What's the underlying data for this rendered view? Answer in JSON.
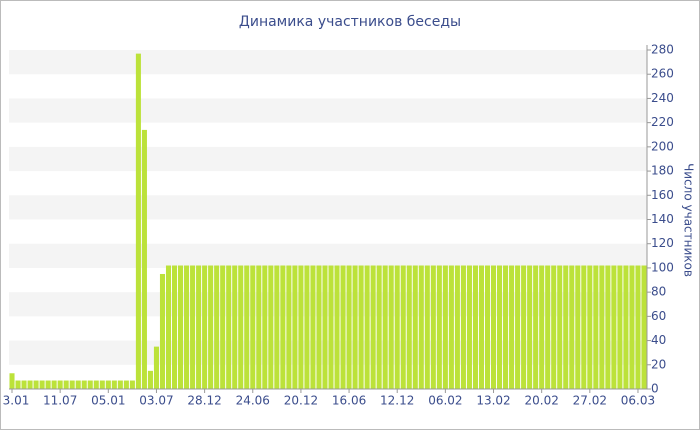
{
  "chart_data": {
    "type": "bar",
    "title": "Динамика участников беседы",
    "y_axis_label": "Число участников",
    "categories": [
      "3.01",
      null,
      null,
      null,
      null,
      null,
      null,
      null,
      "11.07",
      null,
      null,
      null,
      null,
      null,
      null,
      null,
      "05.01",
      null,
      null,
      null,
      null,
      null,
      null,
      null,
      "03.07",
      null,
      null,
      null,
      null,
      null,
      null,
      null,
      "28.12",
      null,
      null,
      null,
      null,
      null,
      null,
      null,
      "24.06",
      null,
      null,
      null,
      null,
      null,
      null,
      null,
      "20.12",
      null,
      null,
      null,
      null,
      null,
      null,
      null,
      "16.06",
      null,
      null,
      null,
      null,
      null,
      null,
      null,
      "12.12",
      null,
      null,
      null,
      null,
      null,
      null,
      null,
      "06.02",
      null,
      null,
      null,
      null,
      null,
      null,
      null,
      "13.02",
      null,
      null,
      null,
      null,
      null,
      null,
      null,
      "20.02",
      null,
      null,
      null,
      null,
      null,
      null,
      null,
      "27.02",
      null,
      null,
      null,
      null,
      null,
      null,
      null,
      "06.03",
      null
    ],
    "values": [
      13,
      7,
      7,
      7,
      7,
      7,
      7,
      7,
      7,
      7,
      7,
      7,
      7,
      7,
      7,
      7,
      7,
      7,
      7,
      7,
      7,
      277,
      214,
      15,
      35,
      95,
      102,
      102,
      102,
      102,
      102,
      102,
      102,
      102,
      102,
      102,
      102,
      102,
      102,
      102,
      102,
      102,
      102,
      102,
      102,
      102,
      102,
      102,
      102,
      102,
      102,
      102,
      102,
      102,
      102,
      102,
      102,
      102,
      102,
      102,
      102,
      102,
      102,
      102,
      102,
      102,
      102,
      102,
      102,
      102,
      102,
      102,
      102,
      102,
      102,
      102,
      102,
      102,
      102,
      102,
      102,
      102,
      102,
      102,
      102,
      102,
      102,
      102,
      102,
      102,
      102,
      102,
      102,
      102,
      102,
      102,
      102,
      102,
      102,
      102,
      102,
      102,
      102,
      102,
      102,
      102
    ],
    "color": "#bce23a",
    "ylim": [
      0,
      280
    ],
    "yticks": [
      0,
      20,
      40,
      60,
      80,
      100,
      120,
      140,
      160,
      180,
      200,
      220,
      240,
      260,
      280
    ],
    "grid": true
  }
}
